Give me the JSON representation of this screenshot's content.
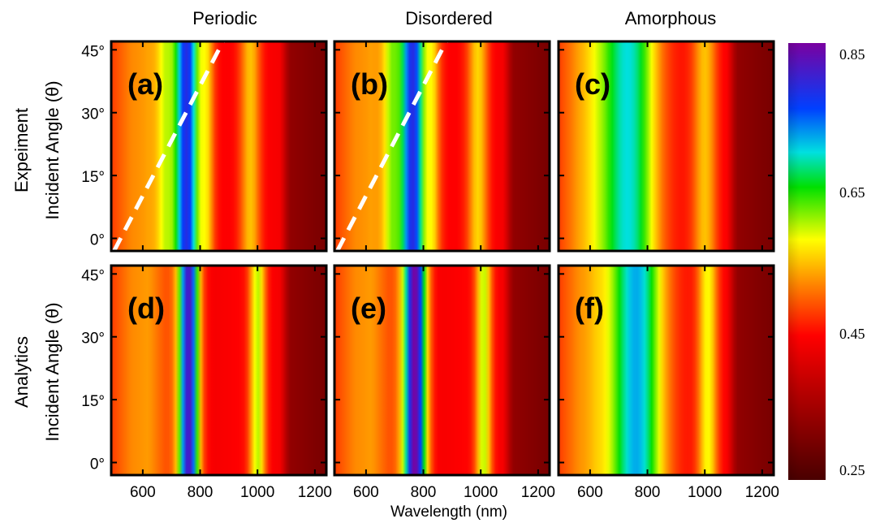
{
  "chart_data": {
    "type": "heatmap",
    "column_titles": [
      "Periodic",
      "Disordered",
      "Amorphous"
    ],
    "row_labels": [
      "Expeiment",
      "Analytics"
    ],
    "ylabel": "Incident Angle (θ)",
    "xlabel": "Wavelength (nm)",
    "x_ticks": [
      600,
      800,
      1000,
      1200
    ],
    "y_ticks": [
      0,
      15,
      30,
      45
    ],
    "y_tick_labels": [
      "0°",
      "15°",
      "30°",
      "45°"
    ],
    "xlim": [
      490,
      1240
    ],
    "ylim": [
      -3,
      47
    ],
    "colorbar": {
      "ticks": [
        "0.85",
        "0.65",
        "0.45",
        "0.25"
      ],
      "range": [
        0.25,
        0.85
      ]
    },
    "panels": [
      {
        "label": "(a)",
        "row": 0,
        "col": 0,
        "features": [
          {
            "center": 750,
            "width": 45,
            "value": 0.8
          },
          {
            "center": 690,
            "width": 25,
            "value": 0.6
          },
          {
            "center": 810,
            "width": 20,
            "value": 0.58
          },
          {
            "center": 975,
            "width": 25,
            "value": 0.55
          }
        ],
        "dashed_line": {
          "from": [
            500,
            -3
          ],
          "to": [
            880,
            47
          ]
        }
      },
      {
        "label": "(b)",
        "row": 0,
        "col": 1,
        "features": [
          {
            "center": 760,
            "width": 45,
            "value": 0.8
          },
          {
            "center": 700,
            "width": 25,
            "value": 0.62
          },
          {
            "center": 820,
            "width": 20,
            "value": 0.58
          },
          {
            "center": 990,
            "width": 25,
            "value": 0.56
          }
        ],
        "dashed_line": {
          "from": [
            500,
            -3
          ],
          "to": [
            880,
            47
          ]
        }
      },
      {
        "label": "(c)",
        "row": 0,
        "col": 2,
        "features": [
          {
            "center": 730,
            "width": 75,
            "value": 0.7
          },
          {
            "center": 1000,
            "width": 30,
            "value": 0.55
          }
        ]
      },
      {
        "label": "(d)",
        "row": 1,
        "col": 0,
        "features": [
          {
            "center": 760,
            "width": 25,
            "value": 0.82
          },
          {
            "center": 1000,
            "width": 20,
            "value": 0.6
          }
        ]
      },
      {
        "label": "(e)",
        "row": 1,
        "col": 1,
        "features": [
          {
            "center": 770,
            "width": 28,
            "value": 0.85
          },
          {
            "center": 1010,
            "width": 20,
            "value": 0.6
          }
        ]
      },
      {
        "label": "(f)",
        "row": 1,
        "col": 2,
        "features": [
          {
            "center": 760,
            "width": 70,
            "value": 0.72
          },
          {
            "center": 1010,
            "width": 25,
            "value": 0.58
          }
        ]
      }
    ]
  }
}
